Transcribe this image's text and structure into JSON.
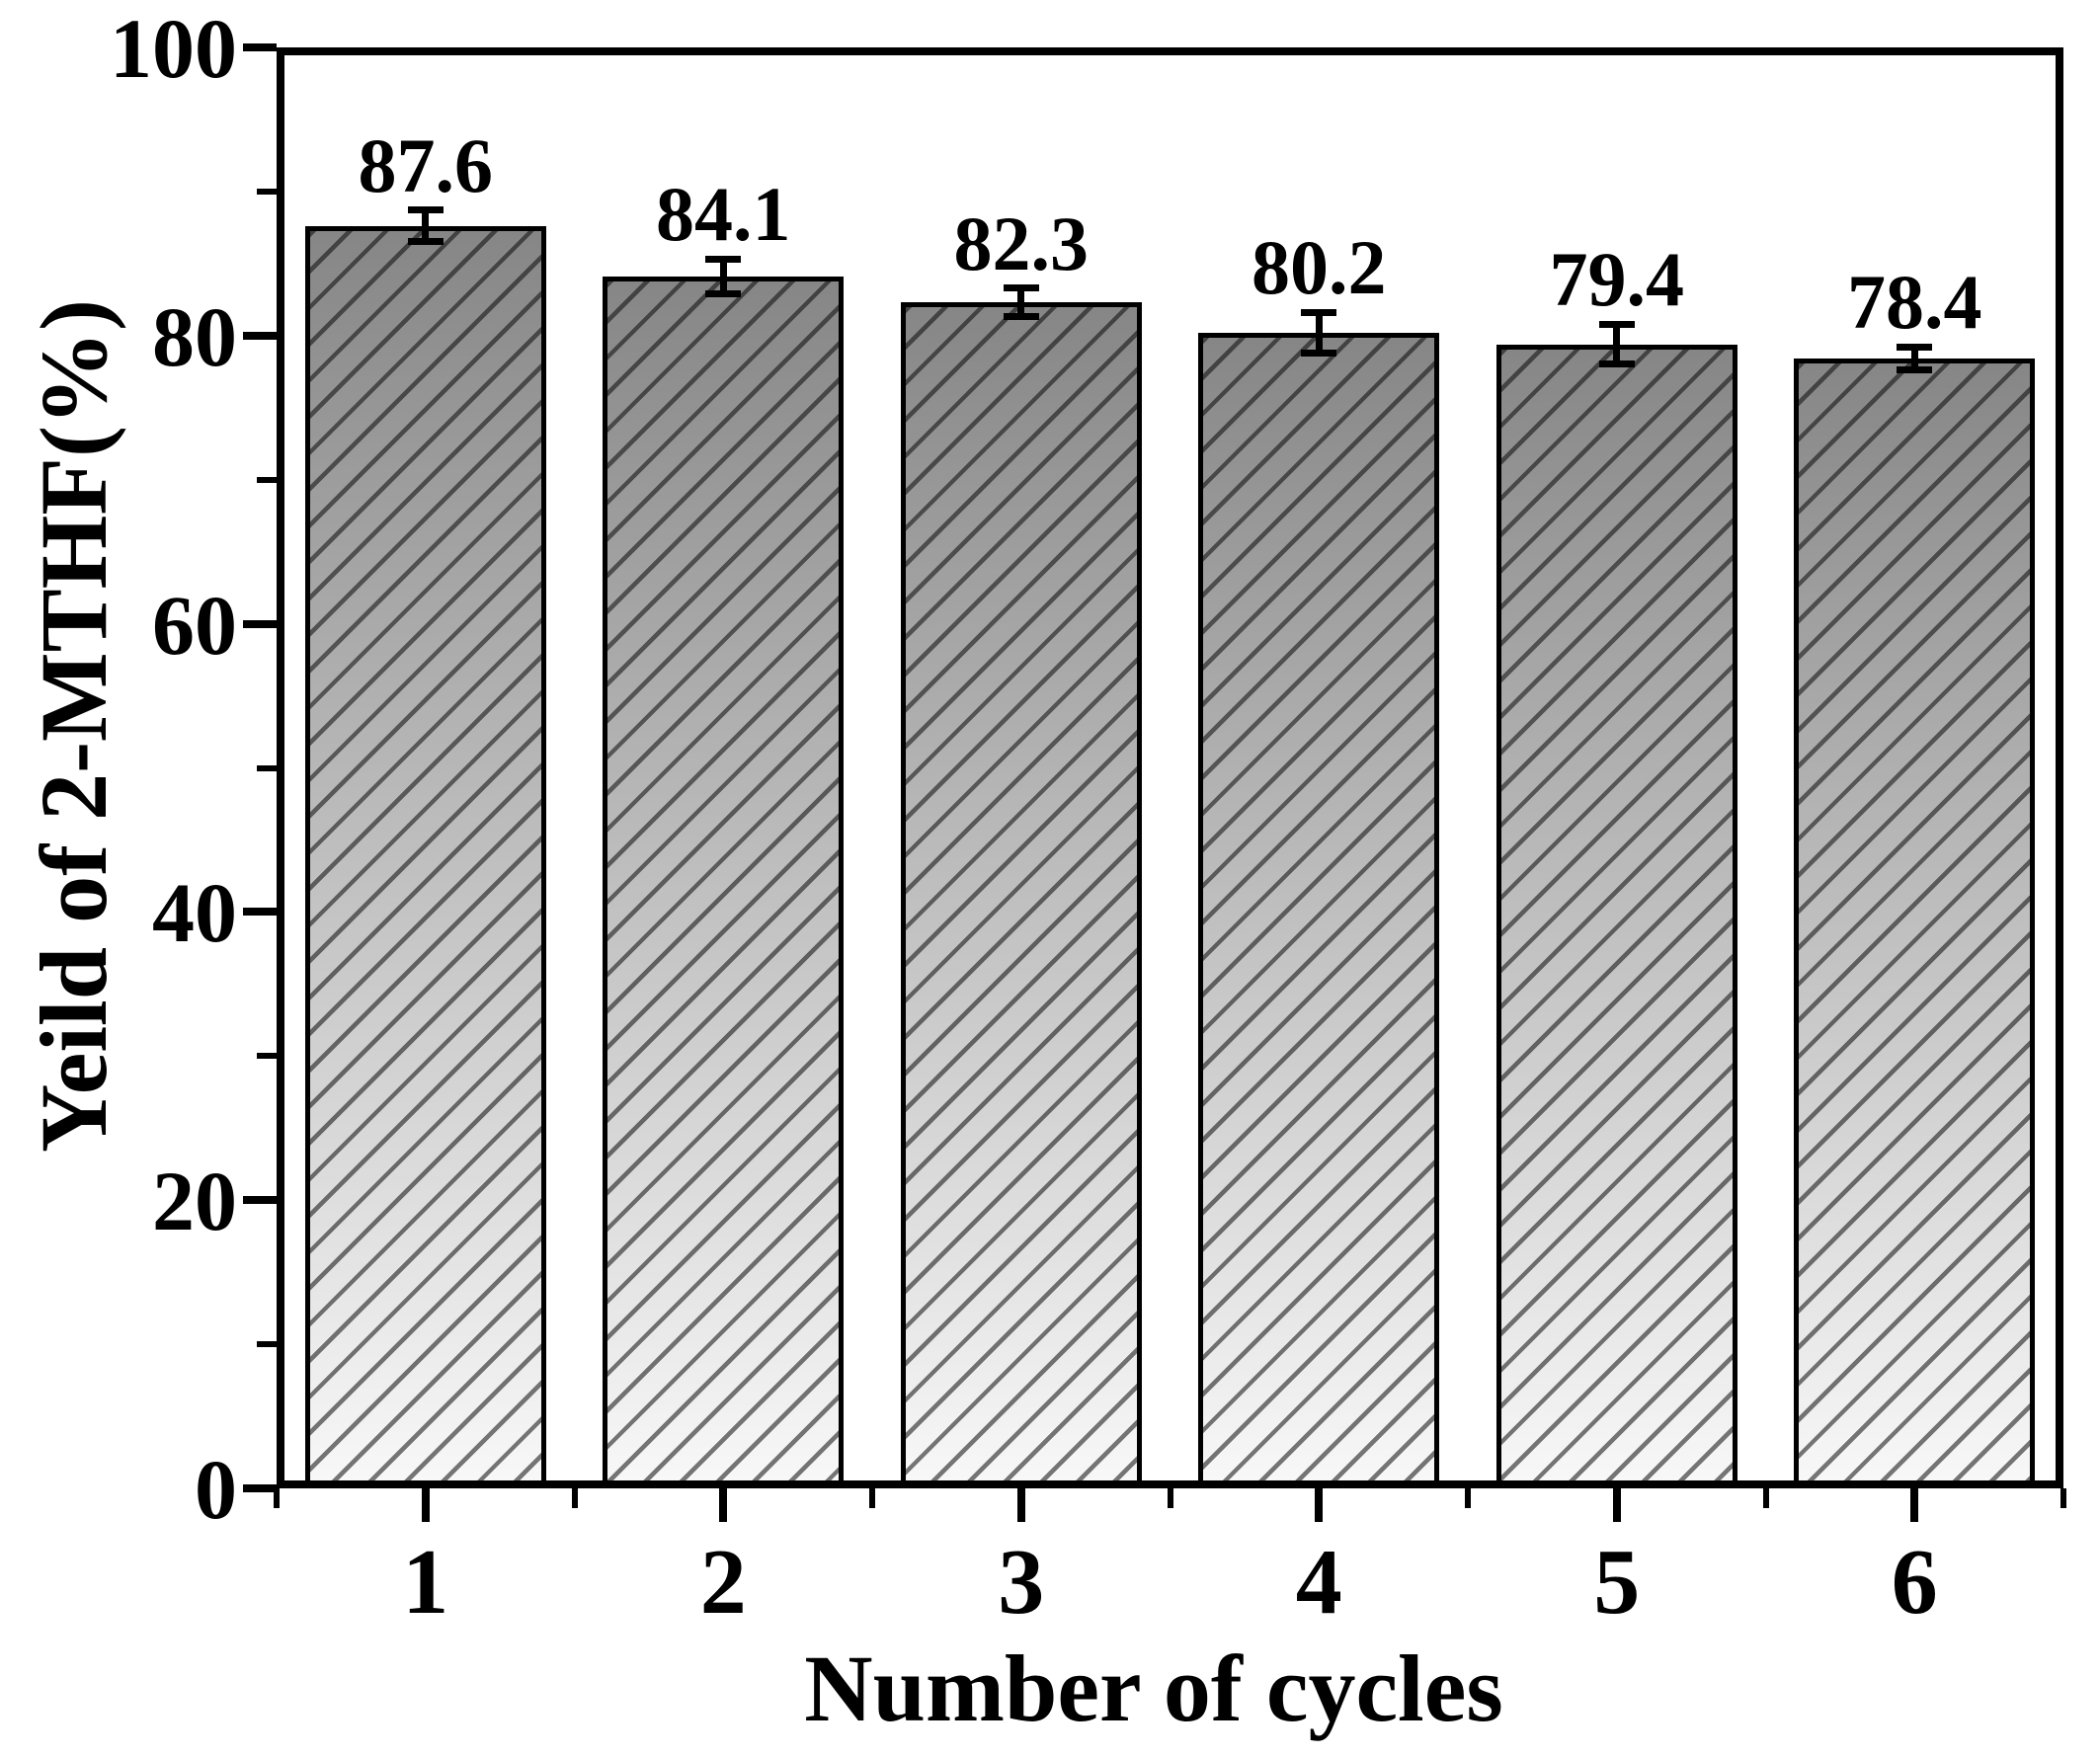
{
  "figure": {
    "background": "#ffffff",
    "text_color": "#000000",
    "axis_color": "#000000"
  },
  "chart_data": {
    "type": "bar",
    "title": "",
    "categories": [
      "1",
      "2",
      "3",
      "4",
      "5",
      "6"
    ],
    "values": [
      87.6,
      84.1,
      82.3,
      80.2,
      79.4,
      78.4
    ],
    "bar_labels": [
      "87.6",
      "84.1",
      "82.3",
      "80.2",
      "79.4",
      "78.4"
    ],
    "errors": [
      1.1,
      1.2,
      1.0,
      1.4,
      1.4,
      0.8
    ],
    "xlabel": "Number of cycles",
    "ylabel": "Yeild of 2-MTHF(%)",
    "ylim": [
      0,
      100
    ],
    "y_major_ticks": [
      0,
      20,
      40,
      60,
      80,
      100
    ],
    "y_minor_ticks": [
      10,
      30,
      50,
      70,
      90
    ],
    "grid": false,
    "legend": "none",
    "bar_style": {
      "fill_top": "#868686",
      "fill_bottom": "#f8f8f8",
      "hatch": "forward-diagonal",
      "hatch_color": "rgba(10,10,10,0.55)",
      "border": "#000000"
    }
  }
}
